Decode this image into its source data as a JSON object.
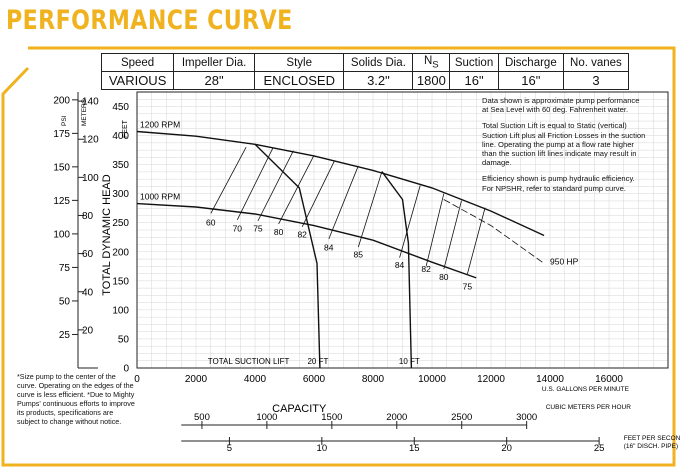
{
  "title": "PERFORMANCE CURVE",
  "specs": {
    "headers": [
      "Speed",
      "Impeller Dia.",
      "Style",
      "Solids Dia.",
      "NS",
      "Suction",
      "Discharge",
      "No. vanes"
    ],
    "ns_main": "N",
    "ns_sub": "S",
    "values": [
      "VARIOUS",
      "28\"",
      "ENCLOSED",
      "3.2\"",
      "1800",
      "16\"",
      "16\"",
      "3"
    ]
  },
  "notes": {
    "data_note": "Data shown is approximate pump performance at Sea Level with 60 deg. Fahrenheit water.",
    "suction_note": "Total Suction Lift is equal to Static (vertical) Suction Lift plus all Friction Losses in the suction line. Operating the pump at a flow rate higher than the suction lift lines indicate may result in damage.",
    "efficiency_note": "Efficiency shown is pump hydraulic efficiency. For NPSHR, refer to standard pump curve.",
    "footnote": "*Size pump to the center of the curve. Operating on the edges of the curve is less efficient. *Due to Mighty Pumps' continuous efforts to improve its products, specifications are subject to change without notice."
  },
  "chart_data": {
    "type": "line",
    "xlabel": "CAPACITY",
    "x_unit_label": "U.S. GALLONS PER MINUTE",
    "ylabel": "TOTAL DYNAMIC HEAD",
    "xlim": [
      0,
      18000
    ],
    "ylim": [
      0,
      475
    ],
    "grid": true,
    "x_ticks": [
      0,
      2000,
      4000,
      6000,
      8000,
      10000,
      12000,
      14000,
      16000
    ],
    "y_ticks": [
      0,
      50,
      100,
      150,
      200,
      250,
      300,
      350,
      400,
      450
    ],
    "feet_label": "FEET",
    "meters_label": "METERS",
    "psi_label": "PSI",
    "meters_ticks": [
      {
        "label": "20",
        "feet": 65.6
      },
      {
        "label": "40",
        "feet": 131.2
      },
      {
        "label": "60",
        "feet": 196.9
      },
      {
        "label": "80",
        "feet": 262.5
      },
      {
        "label": "100",
        "feet": 328.1
      },
      {
        "label": "120",
        "feet": 393.7
      },
      {
        "label": "140",
        "feet": 459.3
      }
    ],
    "psi_ticks": [
      {
        "label": "25",
        "feet": 57.7
      },
      {
        "label": "50",
        "feet": 115.4
      },
      {
        "label": "75",
        "feet": 173.1
      },
      {
        "label": "100",
        "feet": 230.8
      },
      {
        "label": "125",
        "feet": 288.5
      },
      {
        "label": "150",
        "feet": 346.2
      },
      {
        "label": "175",
        "feet": 403.8
      },
      {
        "label": "200",
        "feet": 461.5
      }
    ],
    "series": [
      {
        "name": "1200 RPM",
        "x": [
          0,
          2000,
          4000,
          6000,
          8000,
          10000,
          12000,
          13800
        ],
        "y": [
          407,
          399,
          385,
          365,
          340,
          310,
          270,
          228
        ]
      },
      {
        "name": "1000 RPM",
        "x": [
          0,
          2000,
          4000,
          6000,
          8000,
          10000,
          11500
        ],
        "y": [
          283,
          277,
          265,
          245,
          220,
          182,
          155
        ]
      }
    ],
    "efficiency_lines": [
      {
        "label": "60",
        "line": [
          [
            3700,
            380
          ],
          [
            2500,
            266
          ]
        ],
        "at": [
          2500,
          250
        ]
      },
      {
        "label": "70",
        "line": [
          [
            4600,
            378
          ],
          [
            3400,
            255
          ]
        ],
        "at": [
          3400,
          240
        ]
      },
      {
        "label": "75",
        "line": [
          [
            5300,
            374
          ],
          [
            4100,
            253
          ]
        ],
        "at": [
          4100,
          240
        ]
      },
      {
        "label": "80",
        "line": [
          [
            6000,
            366
          ],
          [
            4800,
            248
          ]
        ],
        "at": [
          4800,
          234
        ]
      },
      {
        "label": "82",
        "line": [
          [
            6700,
            357
          ],
          [
            5600,
            243
          ]
        ],
        "at": [
          5600,
          230
        ]
      },
      {
        "label": "84",
        "line": [
          [
            7500,
            348
          ],
          [
            6500,
            222
          ]
        ],
        "at": [
          6500,
          207
        ]
      },
      {
        "label": "85",
        "line": [
          [
            8300,
            338
          ],
          [
            7500,
            208
          ]
        ],
        "at": [
          7500,
          195
        ]
      },
      {
        "label": "84",
        "line": [
          [
            9600,
            314
          ],
          [
            8900,
            190
          ]
        ],
        "at": [
          8900,
          177
        ]
      },
      {
        "label": "82",
        "line": [
          [
            10400,
            300
          ],
          [
            9800,
            175
          ]
        ],
        "at": [
          9800,
          170
        ]
      },
      {
        "label": "80",
        "line": [
          [
            11000,
            288
          ],
          [
            10400,
            170
          ]
        ],
        "at": [
          10400,
          157
        ]
      },
      {
        "label": "75",
        "line": [
          [
            11800,
            276
          ],
          [
            11200,
            162
          ]
        ],
        "at": [
          11200,
          140
        ]
      }
    ],
    "hp_line": {
      "label": "950 HP",
      "line": [
        [
          10400,
          290
        ],
        [
          12000,
          245
        ],
        [
          13800,
          180
        ]
      ],
      "at": [
        14000,
        178
      ]
    },
    "suction_lift_lines": [
      {
        "label": "20 FT",
        "x": [
          4000,
          5500,
          6100,
          6200
        ],
        "y": [
          385,
          310,
          180,
          0
        ]
      },
      {
        "label": "10 FT",
        "x": [
          8300,
          9000,
          9200,
          9300
        ],
        "y": [
          338,
          290,
          215,
          0
        ]
      }
    ],
    "suction_lift_title": "TOTAL SUCTION LIFT",
    "secondary_axes": [
      {
        "label": "CUBIC METERS PER HOUR",
        "ticks": [
          500,
          1000,
          1500,
          2000,
          2500,
          3000
        ],
        "gpm_per_unit": 4.4029
      },
      {
        "label": "FEET PER SECOND",
        "sublabel": "(16\" DISCH. PIPE)",
        "ticks": [
          5,
          10,
          15,
          20,
          25
        ],
        "gpm_per_unit": 626.6
      }
    ]
  },
  "colors": {
    "title": "#f0b21f",
    "frame": "#f0b21f",
    "grid": "#d6d6d6",
    "curve": "#111111"
  }
}
